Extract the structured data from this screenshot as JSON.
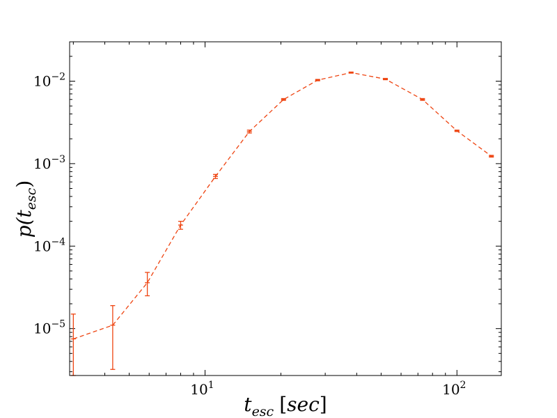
{
  "chart_data": {
    "type": "line",
    "title": "",
    "xlabel": {
      "main": "t",
      "sub": "esc",
      "unit": "sec"
    },
    "ylabel": {
      "main": "p(t",
      "sub": "esc",
      "close": ")"
    },
    "xscale": "log",
    "yscale": "log",
    "xlim": [
      2.9,
      150
    ],
    "ylim": [
      2.7e-06,
      0.03
    ],
    "grid": false,
    "legend": "none",
    "line_style": "dashed",
    "color": "#ee4411",
    "x_ticks": [
      {
        "base": "10",
        "exp": "1",
        "value": 10
      },
      {
        "base": "10",
        "exp": "2",
        "value": 100
      }
    ],
    "y_ticks": [
      {
        "base": "10",
        "exp": "−5",
        "value": 1e-05
      },
      {
        "base": "10",
        "exp": "−4",
        "value": 0.0001
      },
      {
        "base": "10",
        "exp": "−3",
        "value": 0.001
      },
      {
        "base": "10",
        "exp": "−2",
        "value": 0.01
      }
    ],
    "series": [
      {
        "points": [
          {
            "x": 3.0,
            "y": 7.5e-06,
            "ylo": 2.7e-06,
            "yhi": 1.5e-05
          },
          {
            "x": 4.3,
            "y": 1.1e-05,
            "ylo": 3.2e-06,
            "yhi": 1.9e-05
          },
          {
            "x": 5.9,
            "y": 3.6e-05,
            "ylo": 2.5e-05,
            "yhi": 4.8e-05
          },
          {
            "x": 8.0,
            "y": 0.00018,
            "ylo": 0.00016,
            "yhi": 0.0002
          },
          {
            "x": 11.0,
            "y": 0.0007,
            "ylo": 0.00066,
            "yhi": 0.00074
          },
          {
            "x": 15.0,
            "y": 0.00245,
            "ylo": 0.00235,
            "yhi": 0.00255
          },
          {
            "x": 20.5,
            "y": 0.006,
            "ylo": 0.00585,
            "yhi": 0.00615
          },
          {
            "x": 28.0,
            "y": 0.0103,
            "ylo": 0.0101,
            "yhi": 0.0105
          },
          {
            "x": 38.0,
            "y": 0.0127,
            "ylo": 0.0125,
            "yhi": 0.0129
          },
          {
            "x": 52.0,
            "y": 0.0106,
            "ylo": 0.0104,
            "yhi": 0.0108
          },
          {
            "x": 73.0,
            "y": 0.006,
            "ylo": 0.00585,
            "yhi": 0.00615
          },
          {
            "x": 100.0,
            "y": 0.0025,
            "ylo": 0.00245,
            "yhi": 0.00255
          },
          {
            "x": 137.0,
            "y": 0.00123,
            "ylo": 0.0012,
            "yhi": 0.00126
          }
        ]
      }
    ]
  }
}
